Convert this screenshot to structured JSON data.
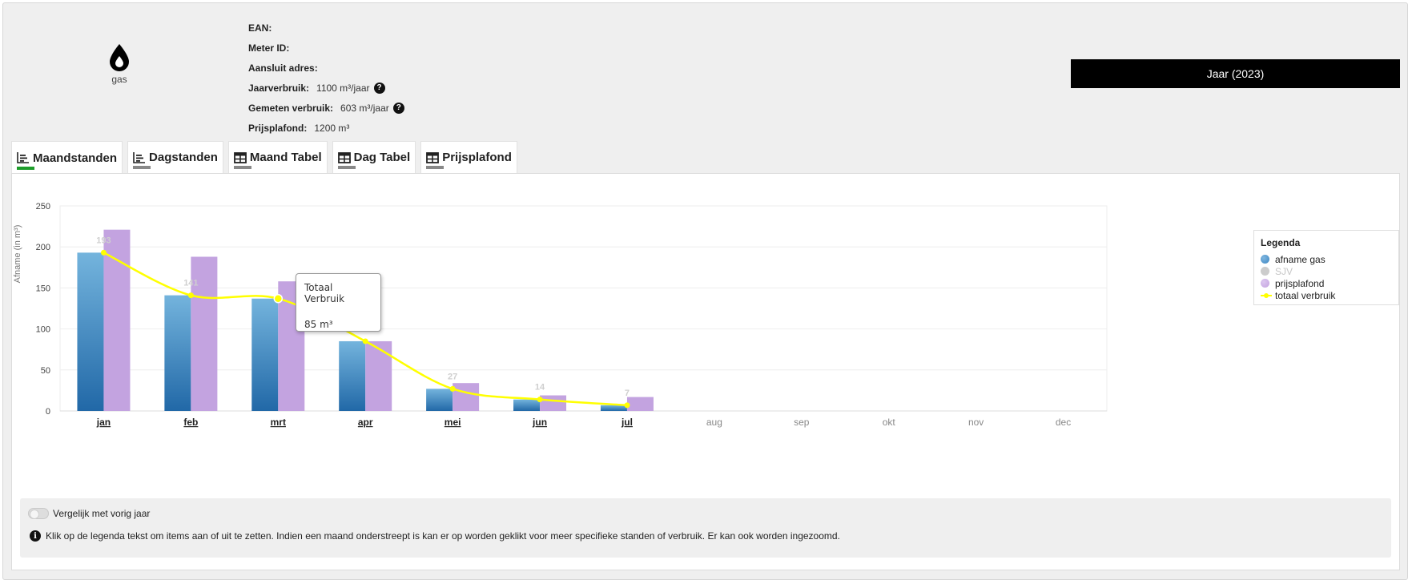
{
  "meter": {
    "type_label": "gas",
    "icon": "drop-icon",
    "fields": [
      {
        "key": "EAN:",
        "value": "",
        "help": false
      },
      {
        "key": "Meter ID:",
        "value": "",
        "help": false
      },
      {
        "key": "Aansluit adres:",
        "value": "",
        "help": false
      },
      {
        "key": "Jaarverbruik:",
        "value": "1100 m³/jaar",
        "help": true
      },
      {
        "key": "Gemeten verbruik:",
        "value": "603 m³/jaar",
        "help": true
      },
      {
        "key": "Prijsplafond:",
        "value": "1200 m³",
        "help": false
      }
    ],
    "help_icon_text": "?"
  },
  "year_button": {
    "label": "Jaar (2023)"
  },
  "tabs": [
    {
      "label": "Maandstanden",
      "icon": "bar-chart-icon",
      "active": true
    },
    {
      "label": "Dagstanden",
      "icon": "bar-chart-icon",
      "active": false
    },
    {
      "label": "Maand Tabel",
      "icon": "table-icon",
      "active": false
    },
    {
      "label": "Dag Tabel",
      "icon": "table-icon",
      "active": false
    },
    {
      "label": "Prijsplafond",
      "icon": "table-icon",
      "active": false
    }
  ],
  "chart_data": {
    "type": "bar",
    "ylabel": "Afname (in m³)",
    "ylim": [
      0,
      250
    ],
    "yticks": [
      0,
      50,
      100,
      150,
      200,
      250
    ],
    "grid": true,
    "categories": [
      "jan",
      "feb",
      "mrt",
      "apr",
      "mei",
      "jun",
      "jul",
      "aug",
      "sep",
      "okt",
      "nov",
      "dec"
    ],
    "clickable_months": [
      true,
      true,
      true,
      true,
      true,
      true,
      true,
      false,
      false,
      false,
      false,
      false
    ],
    "series": [
      {
        "name": "afname gas",
        "kind": "bar",
        "color": "#3d86c1",
        "values": [
          193,
          141,
          137,
          85,
          27,
          14,
          7,
          null,
          null,
          null,
          null,
          null
        ]
      },
      {
        "name": "SJV",
        "kind": "bar",
        "color": "#cccccc",
        "hidden": true,
        "values": [
          null,
          null,
          null,
          null,
          null,
          null,
          null,
          null,
          null,
          null,
          null,
          null
        ]
      },
      {
        "name": "prijsplafond",
        "kind": "bar",
        "color": "#c3a3e0",
        "values": [
          221,
          188,
          158,
          85,
          34,
          19,
          17,
          null,
          null,
          null,
          null,
          null
        ]
      },
      {
        "name": "totaal verbruik",
        "kind": "line",
        "color": "#ffff00",
        "values": [
          193,
          141,
          137,
          85,
          27,
          14,
          7,
          null,
          null,
          null,
          null,
          null
        ]
      }
    ],
    "data_labels": [
      "193",
      "141",
      "",
      "85",
      "27",
      "14",
      "7"
    ],
    "legend_title": "Legenda",
    "legend_position": "right"
  },
  "tooltip": {
    "title": "Totaal Verbruik",
    "value": "85 m³"
  },
  "compare": {
    "label": "Vergelijk met vorig jaar",
    "enabled": false
  },
  "hint": {
    "icon_text": "i",
    "text": "Klik op de legenda tekst om items aan of uit te zetten. Indien een maand onderstreept is kan er op worden geklikt voor meer specifieke standen of verbruik. Er kan ook worden ingezoomd."
  }
}
